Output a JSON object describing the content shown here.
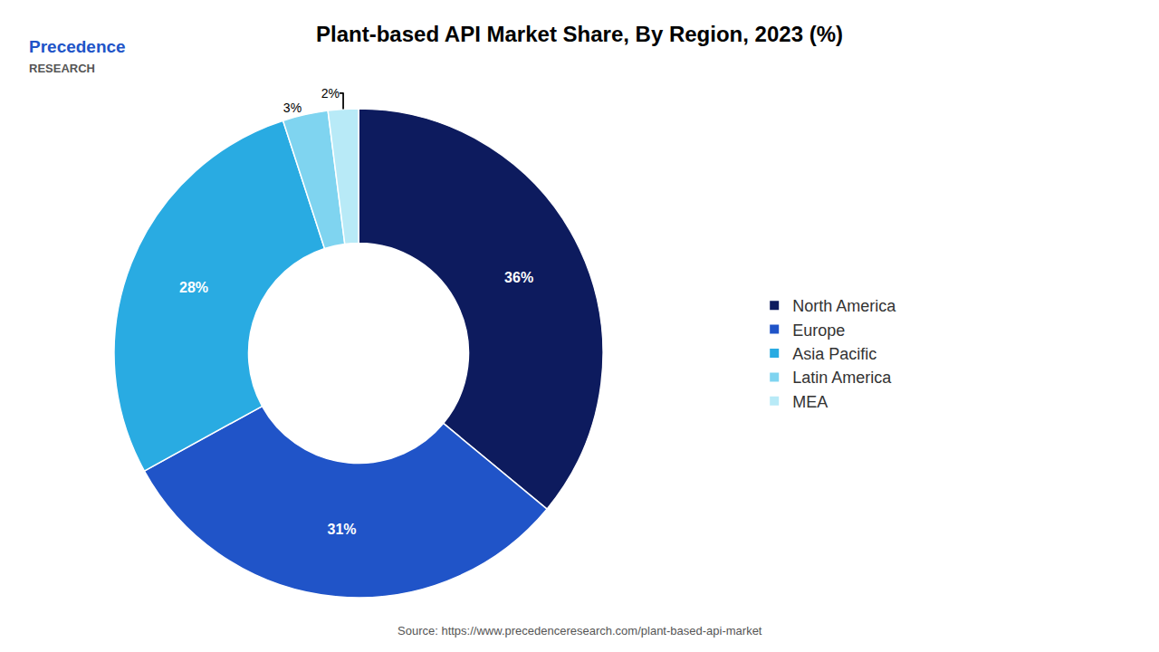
{
  "chart_data": {
    "type": "pie",
    "title": "Plant-based API Market Share, By Region, 2023 (%)",
    "categories": [
      "North America",
      "Europe",
      "Asia Pacific",
      "Latin America",
      "MEA"
    ],
    "values": [
      36,
      31,
      28,
      3,
      2
    ],
    "value_labels": [
      "36%",
      "31%",
      "28%",
      "3%",
      "2%"
    ],
    "colors": [
      "#0d1b5e",
      "#2054c8",
      "#29abe2",
      "#7fd4f0",
      "#b8eaf7"
    ],
    "data_labels": true,
    "legend": "right",
    "annotations": [
      "Precedence",
      "RESEARCH",
      "Source: https://www.precedenceresearch.com/plant-based-api-market"
    ]
  }
}
